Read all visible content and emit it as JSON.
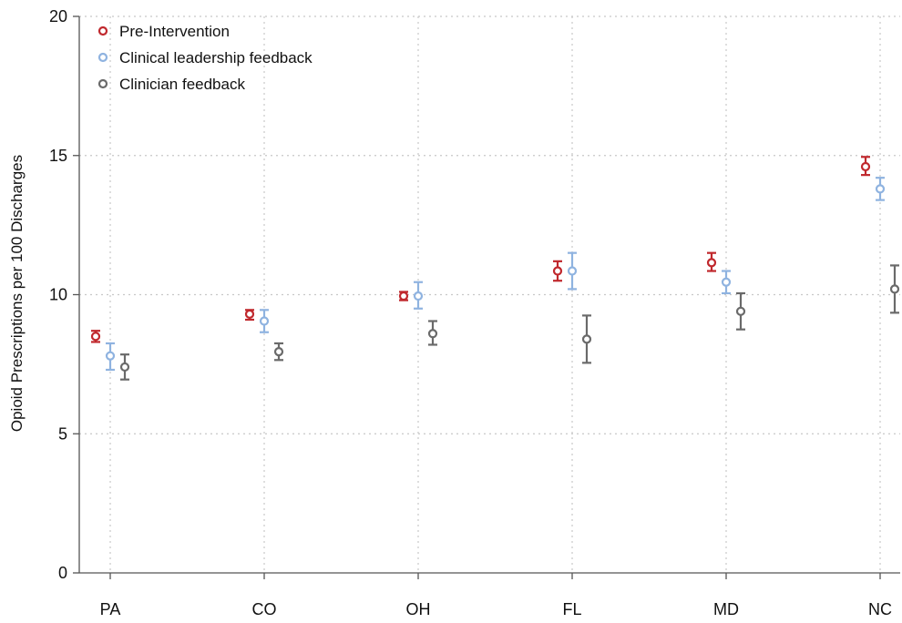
{
  "chart_data": {
    "type": "scatter",
    "categories": [
      "PA",
      "CO",
      "OH",
      "FL",
      "MD",
      "NC"
    ],
    "ylabel": "Opioid Prescriptions per 100 Discharges",
    "xlabel": "",
    "ylim": [
      0,
      20
    ],
    "yticks": [
      0,
      5,
      10,
      15,
      20
    ],
    "grid": true,
    "legend_position": "top-left",
    "series": [
      {
        "name": "Pre-Intervention",
        "color": "#c0282d",
        "values": [
          8.5,
          9.3,
          9.95,
          10.85,
          11.15,
          14.6
        ],
        "lower": [
          8.3,
          9.1,
          9.8,
          10.5,
          10.85,
          14.3
        ],
        "upper": [
          8.7,
          9.45,
          10.1,
          11.2,
          11.5,
          14.95
        ]
      },
      {
        "name": "Clinical leadership feedback",
        "color": "#8fb3e0",
        "values": [
          7.8,
          9.05,
          9.95,
          10.85,
          10.45,
          13.8
        ],
        "lower": [
          7.3,
          8.65,
          9.5,
          10.2,
          10.05,
          13.4
        ],
        "upper": [
          8.25,
          9.45,
          10.45,
          11.5,
          10.85,
          14.2
        ]
      },
      {
        "name": "Clinician feedback",
        "color": "#6a6a6a",
        "values": [
          7.4,
          7.95,
          8.6,
          8.4,
          9.4,
          10.2
        ],
        "lower": [
          6.95,
          7.65,
          8.2,
          7.55,
          8.75,
          9.35
        ],
        "upper": [
          7.85,
          8.25,
          9.05,
          9.25,
          10.05,
          11.05
        ]
      }
    ]
  }
}
